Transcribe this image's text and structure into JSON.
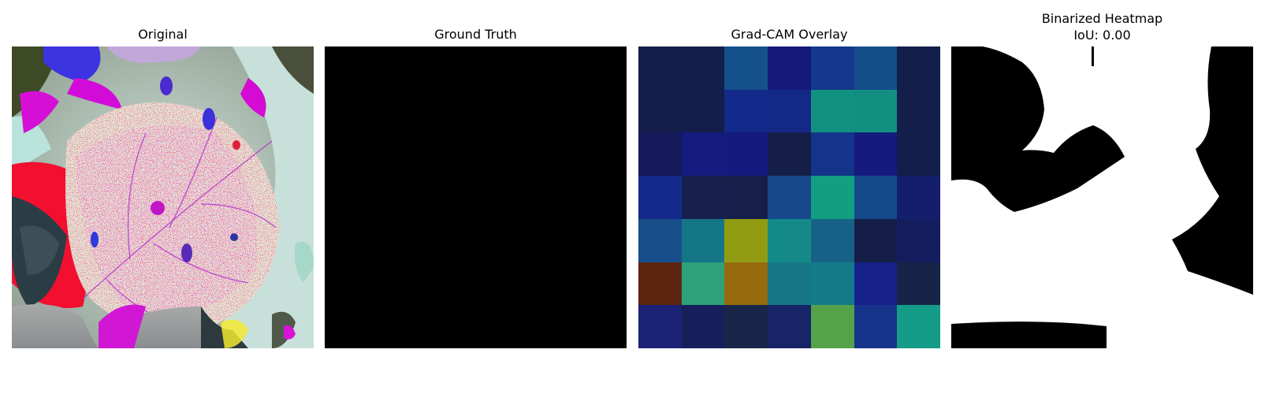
{
  "panels": {
    "original": {
      "title": "Original"
    },
    "ground_truth": {
      "title": "Ground Truth"
    },
    "gradcam": {
      "title": "Grad-CAM Overlay",
      "cells": [
        [
          "#141e4a",
          "#141e4a",
          "#14508a",
          "#14197a",
          "#13388c",
          "#134d8a",
          "#141e4a"
        ],
        [
          "#141e4a",
          "#141e4a",
          "#142a8a",
          "#142885",
          "#129080",
          "#138f82",
          "#141e4a"
        ],
        [
          "#141a5a",
          "#141c80",
          "#141b7e",
          "#151e47",
          "#13348a",
          "#141a7e",
          "#141e4a"
        ],
        [
          "#142a8a",
          "#161f4e",
          "#161f4a",
          "#16488a",
          "#129e80",
          "#144a8a",
          "#141e6c"
        ],
        [
          "#174e8a",
          "#157688",
          "#919c13",
          "#138a88",
          "#166286",
          "#151e47",
          "#141e5e"
        ],
        [
          "#5d2410",
          "#2da27a",
          "#976a0e",
          "#167686",
          "#137a8a",
          "#17218a",
          "#172447"
        ],
        [
          "#1b2376",
          "#161f5a",
          "#182649",
          "#172468",
          "#55a24a",
          "#16348a",
          "#149c88"
        ]
      ]
    },
    "binarized": {
      "title": "Binarized Heatmap",
      "iou": "IoU: 0.00"
    }
  },
  "colors": {
    "background": "#ffffff",
    "mask_black": "#000000",
    "mask_white": "#ffffff"
  }
}
